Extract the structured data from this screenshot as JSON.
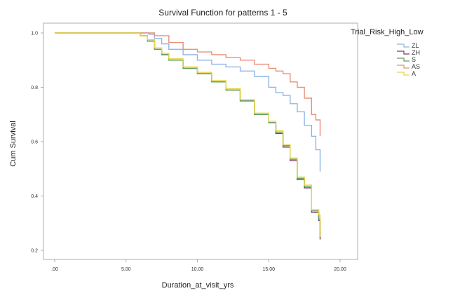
{
  "chart_data": {
    "type": "line",
    "title": "Survival Function for patterns 1 - 5",
    "xlabel": "Duration_at_visit_yrs",
    "ylabel": "Cum Survival",
    "xlim": [
      0,
      20
    ],
    "ylim": [
      0.2,
      1.0
    ],
    "x_ticks": [
      ".00",
      "5.00",
      "10.00",
      "15.00",
      "20.00"
    ],
    "y_ticks": [
      "0.2",
      "0.4",
      "0.6",
      "0.8",
      "1.0"
    ],
    "grid": false,
    "legend_title": "Trial_Risk_High_Low",
    "legend_position": "right",
    "series": [
      {
        "name": "ZL",
        "color": "#8fb5e6",
        "points": [
          [
            0,
            1.0
          ],
          [
            6.0,
            1.0
          ],
          [
            6.6,
            0.995
          ],
          [
            7.0,
            0.98
          ],
          [
            7.5,
            0.96
          ],
          [
            8.0,
            0.94
          ],
          [
            9.0,
            0.92
          ],
          [
            10.0,
            0.9
          ],
          [
            11.0,
            0.885
          ],
          [
            12.0,
            0.875
          ],
          [
            13.0,
            0.86
          ],
          [
            14.0,
            0.84
          ],
          [
            15.0,
            0.8
          ],
          [
            15.5,
            0.78
          ],
          [
            16.0,
            0.77
          ],
          [
            16.5,
            0.74
          ],
          [
            17.0,
            0.71
          ],
          [
            17.5,
            0.66
          ],
          [
            18.0,
            0.62
          ],
          [
            18.3,
            0.57
          ],
          [
            18.6,
            0.57
          ],
          [
            18.6,
            0.49
          ]
        ]
      },
      {
        "name": "ZH",
        "color": "#7a3b6e",
        "points": [
          [
            0,
            1.0
          ],
          [
            5.6,
            1.0
          ],
          [
            6.0,
            0.99
          ],
          [
            6.5,
            0.97
          ],
          [
            7.0,
            0.94
          ],
          [
            7.5,
            0.92
          ],
          [
            8.0,
            0.9
          ],
          [
            9.0,
            0.87
          ],
          [
            10.0,
            0.85
          ],
          [
            11.0,
            0.82
          ],
          [
            12.0,
            0.79
          ],
          [
            13.0,
            0.75
          ],
          [
            14.0,
            0.7
          ],
          [
            15.0,
            0.67
          ],
          [
            15.5,
            0.63
          ],
          [
            16.0,
            0.58
          ],
          [
            16.5,
            0.53
          ],
          [
            17.0,
            0.46
          ],
          [
            17.5,
            0.43
          ],
          [
            18.0,
            0.34
          ],
          [
            18.5,
            0.31
          ],
          [
            18.6,
            0.24
          ]
        ]
      },
      {
        "name": "S",
        "color": "#5f9f5f",
        "points": [
          [
            0,
            1.0
          ],
          [
            5.6,
            1.0
          ],
          [
            6.0,
            0.99
          ],
          [
            6.5,
            0.97
          ],
          [
            7.0,
            0.94
          ],
          [
            7.5,
            0.92
          ],
          [
            8.0,
            0.9
          ],
          [
            9.0,
            0.87
          ],
          [
            10.0,
            0.85
          ],
          [
            11.0,
            0.82
          ],
          [
            12.0,
            0.79
          ],
          [
            13.0,
            0.75
          ],
          [
            14.0,
            0.7
          ],
          [
            15.0,
            0.67
          ],
          [
            15.5,
            0.635
          ],
          [
            16.0,
            0.585
          ],
          [
            16.5,
            0.535
          ],
          [
            17.0,
            0.465
          ],
          [
            17.5,
            0.435
          ],
          [
            18.0,
            0.345
          ],
          [
            18.5,
            0.315
          ],
          [
            18.6,
            0.25
          ]
        ]
      },
      {
        "name": "AS",
        "color": "#e8907a",
        "points": [
          [
            0,
            1.0
          ],
          [
            6.2,
            1.0
          ],
          [
            7.0,
            0.99
          ],
          [
            8.0,
            0.965
          ],
          [
            9.0,
            0.94
          ],
          [
            10.0,
            0.93
          ],
          [
            11.0,
            0.92
          ],
          [
            12.0,
            0.91
          ],
          [
            13.0,
            0.9
          ],
          [
            14.0,
            0.885
          ],
          [
            15.0,
            0.87
          ],
          [
            15.5,
            0.86
          ],
          [
            16.0,
            0.85
          ],
          [
            16.5,
            0.82
          ],
          [
            17.0,
            0.8
          ],
          [
            17.5,
            0.76
          ],
          [
            18.0,
            0.7
          ],
          [
            18.3,
            0.68
          ],
          [
            18.6,
            0.68
          ],
          [
            18.6,
            0.62
          ]
        ]
      },
      {
        "name": "A",
        "color": "#e8d64a",
        "points": [
          [
            0,
            1.0
          ],
          [
            5.6,
            1.0
          ],
          [
            6.0,
            0.99
          ],
          [
            6.5,
            0.975
          ],
          [
            7.0,
            0.945
          ],
          [
            7.5,
            0.925
          ],
          [
            8.0,
            0.905
          ],
          [
            9.0,
            0.875
          ],
          [
            10.0,
            0.855
          ],
          [
            11.0,
            0.825
          ],
          [
            12.0,
            0.795
          ],
          [
            13.0,
            0.755
          ],
          [
            14.0,
            0.705
          ],
          [
            15.0,
            0.675
          ],
          [
            15.5,
            0.64
          ],
          [
            16.0,
            0.59
          ],
          [
            16.5,
            0.54
          ],
          [
            17.0,
            0.47
          ],
          [
            17.5,
            0.44
          ],
          [
            18.0,
            0.35
          ],
          [
            18.5,
            0.33
          ],
          [
            18.6,
            0.25
          ]
        ]
      }
    ]
  }
}
